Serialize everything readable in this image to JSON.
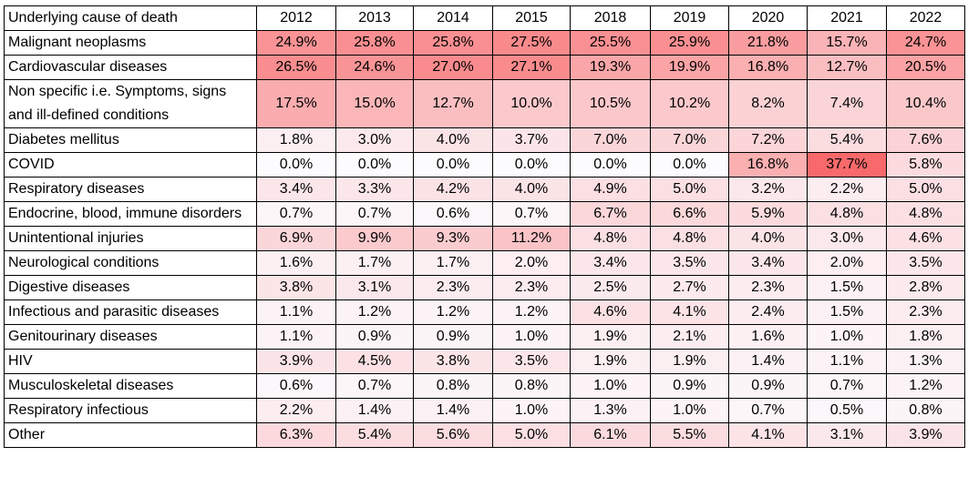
{
  "table": {
    "header_label": "Underlying cause of death",
    "years": [
      "2012",
      "2013",
      "2014",
      "2015",
      "2018",
      "2019",
      "2020",
      "2021",
      "2022"
    ],
    "rows": [
      {
        "name": "Malignant neoplasms",
        "values": [
          "24.9%",
          "25.8%",
          "25.8%",
          "27.5%",
          "25.5%",
          "25.9%",
          "21.8%",
          "15.7%",
          "24.7%"
        ]
      },
      {
        "name": "Cardiovascular diseases",
        "values": [
          "26.5%",
          "24.6%",
          "27.0%",
          "27.1%",
          "19.3%",
          "19.9%",
          "16.8%",
          "12.7%",
          "20.5%"
        ]
      },
      {
        "name": "Non specific i.e. Symptoms, signs and ill-defined conditions",
        "values": [
          "17.5%",
          "15.0%",
          "12.7%",
          "10.0%",
          "10.5%",
          "10.2%",
          "8.2%",
          "7.4%",
          "10.4%"
        ]
      },
      {
        "name": "Diabetes mellitus",
        "values": [
          "1.8%",
          "3.0%",
          "4.0%",
          "3.7%",
          "7.0%",
          "7.0%",
          "7.2%",
          "5.4%",
          "7.6%"
        ]
      },
      {
        "name": "COVID",
        "values": [
          "0.0%",
          "0.0%",
          "0.0%",
          "0.0%",
          "0.0%",
          "0.0%",
          "16.8%",
          "37.7%",
          "5.8%"
        ]
      },
      {
        "name": "Respiratory diseases",
        "values": [
          "3.4%",
          "3.3%",
          "4.2%",
          "4.0%",
          "4.9%",
          "5.0%",
          "3.2%",
          "2.2%",
          "5.0%"
        ]
      },
      {
        "name": "Endocrine, blood, immune disorders",
        "values": [
          "0.7%",
          "0.7%",
          "0.6%",
          "0.7%",
          "6.7%",
          "6.6%",
          "5.9%",
          "4.8%",
          "4.8%"
        ]
      },
      {
        "name": "Unintentional injuries",
        "values": [
          "6.9%",
          "9.9%",
          "9.3%",
          "11.2%",
          "4.8%",
          "4.8%",
          "4.0%",
          "3.0%",
          "4.6%"
        ]
      },
      {
        "name": "Neurological conditions",
        "values": [
          "1.6%",
          "1.7%",
          "1.7%",
          "2.0%",
          "3.4%",
          "3.5%",
          "3.4%",
          "2.0%",
          "3.5%"
        ]
      },
      {
        "name": "Digestive diseases",
        "values": [
          "3.8%",
          "3.1%",
          "2.3%",
          "2.3%",
          "2.5%",
          "2.7%",
          "2.3%",
          "1.5%",
          "2.8%"
        ]
      },
      {
        "name": "Infectious and parasitic diseases",
        "values": [
          "1.1%",
          "1.2%",
          "1.2%",
          "1.2%",
          "4.6%",
          "4.1%",
          "2.4%",
          "1.5%",
          "2.3%"
        ]
      },
      {
        "name": "Genitourinary diseases",
        "values": [
          "1.1%",
          "0.9%",
          "0.9%",
          "1.0%",
          "1.9%",
          "2.1%",
          "1.6%",
          "1.0%",
          "1.8%"
        ]
      },
      {
        "name": "HIV",
        "values": [
          "3.9%",
          "4.5%",
          "3.8%",
          "3.5%",
          "1.9%",
          "1.9%",
          "1.4%",
          "1.1%",
          "1.3%"
        ]
      },
      {
        "name": "Musculoskeletal diseases",
        "values": [
          "0.6%",
          "0.7%",
          "0.8%",
          "0.8%",
          "1.0%",
          "0.9%",
          "0.9%",
          "0.7%",
          "1.2%"
        ]
      },
      {
        "name": "Respiratory infectious",
        "values": [
          "2.2%",
          "1.4%",
          "1.4%",
          "1.0%",
          "1.3%",
          "1.0%",
          "0.7%",
          "0.5%",
          "0.8%"
        ]
      },
      {
        "name": "Other",
        "values": [
          "6.3%",
          "5.4%",
          "5.6%",
          "5.0%",
          "6.1%",
          "5.5%",
          "4.1%",
          "3.1%",
          "3.9%"
        ]
      }
    ]
  },
  "colors": {
    "heat_low": "#fcfcff",
    "heat_high": "#f8696b",
    "heat_max_value": 37.7,
    "border": "#000000"
  }
}
